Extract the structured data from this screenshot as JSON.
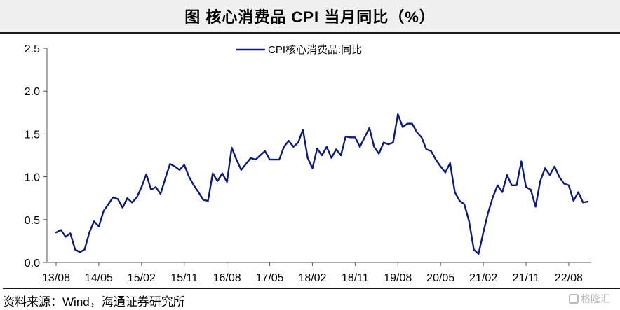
{
  "title": "图  核心消费品 CPI 当月同比（%）",
  "source_note": "资料来源：Wind，海通证券研究所",
  "watermark": "格隆汇",
  "colors": {
    "line": "#0d1b7e",
    "axis": "#555555",
    "title_bg": "#f0f0f0"
  },
  "chart_data": {
    "type": "line",
    "xlabel": "",
    "ylabel": "",
    "ylim": [
      0,
      2.5
    ],
    "yticks": [
      "0.0",
      "0.5",
      "1.0",
      "1.5",
      "2.0",
      "2.5"
    ],
    "xtick_labels": [
      "13/08",
      "14/05",
      "15/02",
      "15/11",
      "16/08",
      "17/05",
      "18/02",
      "18/11",
      "19/08",
      "20/05",
      "21/02",
      "21/11",
      "22/08"
    ],
    "legend": {
      "position": "top-center",
      "label": "CPI核心消费品:同比"
    },
    "grid": false,
    "series": [
      {
        "name": "CPI核心消费品:同比",
        "x": [
          "13/08",
          "13/09",
          "13/10",
          "13/11",
          "13/12",
          "14/01",
          "14/02",
          "14/03",
          "14/04",
          "14/05",
          "14/06",
          "14/07",
          "14/08",
          "14/09",
          "14/10",
          "14/11",
          "14/12",
          "15/01",
          "15/02",
          "15/03",
          "15/04",
          "15/05",
          "15/06",
          "15/07",
          "15/08",
          "15/09",
          "15/10",
          "15/11",
          "15/12",
          "16/01",
          "16/02",
          "16/03",
          "16/04",
          "16/05",
          "16/06",
          "16/07",
          "16/08",
          "16/09",
          "16/10",
          "16/11",
          "16/12",
          "17/01",
          "17/02",
          "17/03",
          "17/04",
          "17/05",
          "17/06",
          "17/07",
          "17/08",
          "17/09",
          "17/10",
          "17/11",
          "17/12",
          "18/01",
          "18/02",
          "18/03",
          "18/04",
          "18/05",
          "18/06",
          "18/07",
          "18/08",
          "18/09",
          "18/10",
          "18/11",
          "18/12",
          "19/01",
          "19/02",
          "19/03",
          "19/04",
          "19/05",
          "19/06",
          "19/07",
          "19/08",
          "19/09",
          "19/10",
          "19/11",
          "19/12",
          "20/01",
          "20/02",
          "20/03",
          "20/04",
          "20/05",
          "20/06",
          "20/07",
          "20/08",
          "20/09",
          "20/10",
          "20/11",
          "20/12",
          "21/01",
          "21/02",
          "21/03",
          "21/04",
          "21/05",
          "21/06",
          "21/07",
          "21/08",
          "21/09",
          "21/10",
          "21/11",
          "21/12",
          "22/01",
          "22/02",
          "22/03",
          "22/04",
          "22/05",
          "22/06",
          "22/07",
          "22/08",
          "22/09",
          "22/10",
          "22/11",
          "22/12"
        ],
        "values": [
          0.35,
          0.38,
          0.3,
          0.34,
          0.15,
          0.12,
          0.15,
          0.35,
          0.48,
          0.42,
          0.6,
          0.68,
          0.76,
          0.74,
          0.64,
          0.75,
          0.7,
          0.76,
          0.88,
          1.03,
          0.85,
          0.88,
          0.8,
          0.98,
          1.15,
          1.12,
          1.08,
          1.14,
          1.0,
          0.9,
          0.82,
          0.73,
          0.72,
          1.04,
          0.95,
          1.04,
          0.94,
          1.34,
          1.2,
          1.08,
          1.15,
          1.22,
          1.2,
          1.25,
          1.3,
          1.2,
          1.2,
          1.2,
          1.35,
          1.42,
          1.35,
          1.4,
          1.55,
          1.22,
          1.1,
          1.33,
          1.25,
          1.35,
          1.22,
          1.32,
          1.25,
          1.47,
          1.46,
          1.46,
          1.35,
          1.46,
          1.57,
          1.35,
          1.27,
          1.4,
          1.38,
          1.4,
          1.73,
          1.58,
          1.62,
          1.62,
          1.52,
          1.46,
          1.32,
          1.3,
          1.2,
          1.12,
          1.05,
          1.16,
          0.82,
          0.72,
          0.68,
          0.48,
          0.15,
          0.1,
          0.35,
          0.58,
          0.76,
          0.9,
          0.82,
          1.02,
          0.9,
          0.9,
          1.18,
          0.88,
          0.85,
          0.65,
          0.95,
          1.1,
          1.02,
          1.12,
          1.0,
          0.92,
          0.9,
          0.72,
          0.82,
          0.7,
          0.71
        ]
      }
    ]
  }
}
